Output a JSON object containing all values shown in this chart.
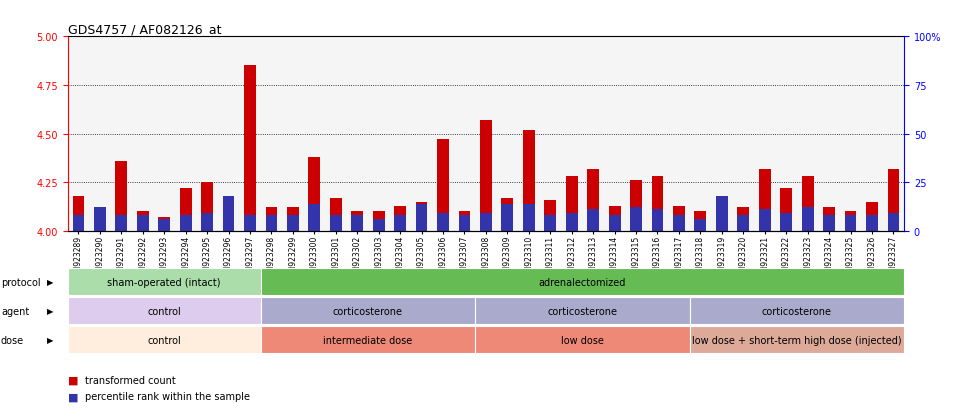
{
  "title": "GDS4757 / AF082126_at",
  "samples": [
    "GSM923289",
    "GSM923290",
    "GSM923291",
    "GSM923292",
    "GSM923293",
    "GSM923294",
    "GSM923295",
    "GSM923296",
    "GSM923297",
    "GSM923298",
    "GSM923299",
    "GSM923300",
    "GSM923301",
    "GSM923302",
    "GSM923303",
    "GSM923304",
    "GSM923305",
    "GSM923306",
    "GSM923307",
    "GSM923308",
    "GSM923309",
    "GSM923310",
    "GSM923311",
    "GSM923312",
    "GSM923313",
    "GSM923314",
    "GSM923315",
    "GSM923316",
    "GSM923317",
    "GSM923318",
    "GSM923319",
    "GSM923320",
    "GSM923321",
    "GSM923322",
    "GSM923323",
    "GSM923324",
    "GSM923325",
    "GSM923326",
    "GSM923327"
  ],
  "red_values": [
    4.18,
    4.05,
    4.36,
    4.1,
    4.07,
    4.22,
    4.25,
    4.12,
    4.85,
    4.12,
    4.12,
    4.38,
    4.17,
    4.1,
    4.1,
    4.13,
    4.15,
    4.47,
    4.1,
    4.57,
    4.17,
    4.52,
    4.16,
    4.28,
    4.32,
    4.13,
    4.26,
    4.28,
    4.13,
    4.1,
    4.08,
    4.12,
    4.32,
    4.22,
    4.28,
    4.12,
    4.1,
    4.15,
    4.32
  ],
  "blue_percentile": [
    8,
    12,
    8,
    8,
    6,
    8,
    9,
    18,
    8,
    8,
    8,
    14,
    8,
    8,
    6,
    8,
    14,
    9,
    8,
    9,
    14,
    14,
    8,
    9,
    11,
    8,
    12,
    11,
    8,
    6,
    18,
    8,
    11,
    9,
    12,
    8,
    8,
    8,
    9
  ],
  "ylim_left": [
    4.0,
    5.0
  ],
  "ylim_right": [
    0,
    100
  ],
  "yticks_left": [
    4.0,
    4.25,
    4.5,
    4.75,
    5.0
  ],
  "yticks_right": [
    0,
    25,
    50,
    75,
    100
  ],
  "grid_values": [
    4.25,
    4.5,
    4.75
  ],
  "bar_width": 0.55,
  "red_color": "#CC0000",
  "blue_color": "#3333AA",
  "bg_color": "#F5F5F5",
  "protocol_sections": [
    {
      "label": "sham-operated (intact)",
      "start": 0,
      "end": 9,
      "color": "#AADDAA"
    },
    {
      "label": "adrenalectomized",
      "start": 9,
      "end": 39,
      "color": "#66BB55"
    }
  ],
  "agent_sections": [
    {
      "label": "control",
      "start": 0,
      "end": 9,
      "color": "#DDCCEE"
    },
    {
      "label": "corticosterone",
      "start": 9,
      "end": 19,
      "color": "#AAAACC"
    },
    {
      "label": "corticosterone",
      "start": 19,
      "end": 29,
      "color": "#AAAACC"
    },
    {
      "label": "corticosterone",
      "start": 29,
      "end": 39,
      "color": "#AAAACC"
    }
  ],
  "dose_sections": [
    {
      "label": "control",
      "start": 0,
      "end": 9,
      "color": "#FFEEDD"
    },
    {
      "label": "intermediate dose",
      "start": 9,
      "end": 19,
      "color": "#EE8877"
    },
    {
      "label": "low dose",
      "start": 19,
      "end": 29,
      "color": "#EE8877"
    },
    {
      "label": "low dose + short-term high dose (injected)",
      "start": 29,
      "end": 39,
      "color": "#DDAA99"
    }
  ],
  "legend_labels": [
    "transformed count",
    "percentile rank within the sample"
  ],
  "legend_colors": [
    "#CC0000",
    "#3333AA"
  ],
  "row_labels": [
    "protocol",
    "agent",
    "dose"
  ]
}
